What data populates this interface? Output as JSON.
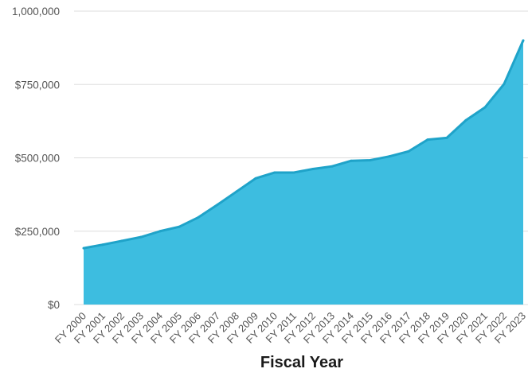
{
  "chart_data": {
    "type": "area",
    "xlabel": "Fiscal Year",
    "ylabel": "",
    "ylim": [
      0,
      1000000
    ],
    "y_ticks": [
      {
        "value": 0,
        "label": "$0"
      },
      {
        "value": 250000,
        "label": "$250,000"
      },
      {
        "value": 500000,
        "label": "$500,000"
      },
      {
        "value": 750000,
        "label": "$750,000"
      },
      {
        "value": 1000000,
        "label": "1,000,000"
      }
    ],
    "categories": [
      "FY 2000",
      "FY 2001",
      "FY 2002",
      "FY 2003",
      "FY 2004",
      "FY 2005",
      "FY 2006",
      "FY 2007",
      "FY 2008",
      "FY 2009",
      "FY 2010",
      "FY 2011",
      "FY 2012",
      "FY 2013",
      "FY 2014",
      "FY 2015",
      "FY 2016",
      "FY 2017",
      "FY 2018",
      "FY 2019",
      "FY 2020",
      "FY 2021",
      "FY 2022",
      "FY 2023"
    ],
    "values": [
      192000,
      204000,
      217000,
      230000,
      250000,
      265000,
      297000,
      340000,
      385000,
      430000,
      450000,
      450000,
      462000,
      471000,
      490000,
      492000,
      505000,
      522000,
      562000,
      568000,
      628000,
      672000,
      752000,
      900000
    ],
    "grid": true,
    "legend": "none",
    "colors": {
      "fill": "#3dbde0",
      "line": "#1fa3c9",
      "gridline": "#dddddd",
      "baseline": "#cccccc"
    }
  }
}
